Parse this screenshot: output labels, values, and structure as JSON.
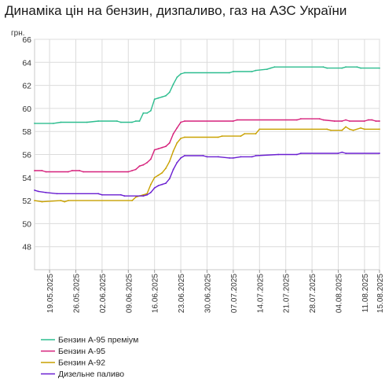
{
  "chart_data": {
    "type": "line",
    "title": "Динаміка цін на бензин, дизпаливо, газ на АЗС України",
    "ylabel": "грн.",
    "ylim": [
      46,
      66
    ],
    "yticks": [
      48,
      50,
      52,
      54,
      56,
      58,
      60,
      62,
      64,
      66
    ],
    "xlim": [
      "2025-05-15",
      "2025-08-15"
    ],
    "xticks": [
      "19.05.2025",
      "26.05.2025",
      "02.06.2025",
      "09.06.2025",
      "16.06.2025",
      "23.06.2025",
      "30.06.2025",
      "07.07.2025",
      "14.07.2025",
      "21.07.2025",
      "28.07.2025",
      "04.08.2025",
      "11.08.2025",
      "15.08.2025"
    ],
    "grid": true,
    "legend_position": "bottom-left",
    "series": [
      {
        "name": "Бензин А-95 преміум",
        "color": "#2dbd8f",
        "points": [
          [
            "2025-05-15",
            58.7
          ],
          [
            "2025-05-20",
            58.7
          ],
          [
            "2025-05-22",
            58.8
          ],
          [
            "2025-05-29",
            58.8
          ],
          [
            "2025-06-01",
            58.9
          ],
          [
            "2025-06-06",
            58.9
          ],
          [
            "2025-06-07",
            58.8
          ],
          [
            "2025-06-10",
            58.8
          ],
          [
            "2025-06-11",
            58.9
          ],
          [
            "2025-06-12",
            58.9
          ],
          [
            "2025-06-13",
            59.6
          ],
          [
            "2025-06-14",
            59.6
          ],
          [
            "2025-06-15",
            59.8
          ],
          [
            "2025-06-16",
            60.8
          ],
          [
            "2025-06-17",
            60.9
          ],
          [
            "2025-06-18",
            61.0
          ],
          [
            "2025-06-19",
            61.1
          ],
          [
            "2025-06-20",
            61.4
          ],
          [
            "2025-06-21",
            62.1
          ],
          [
            "2025-06-22",
            62.7
          ],
          [
            "2025-06-23",
            63.0
          ],
          [
            "2025-06-24",
            63.1
          ],
          [
            "2025-07-06",
            63.1
          ],
          [
            "2025-07-07",
            63.2
          ],
          [
            "2025-07-12",
            63.2
          ],
          [
            "2025-07-13",
            63.3
          ],
          [
            "2025-07-16",
            63.4
          ],
          [
            "2025-07-17",
            63.5
          ],
          [
            "2025-07-18",
            63.6
          ],
          [
            "2025-07-31",
            63.6
          ],
          [
            "2025-08-01",
            63.5
          ],
          [
            "2025-08-05",
            63.5
          ],
          [
            "2025-08-06",
            63.6
          ],
          [
            "2025-08-09",
            63.6
          ],
          [
            "2025-08-10",
            63.5
          ],
          [
            "2025-08-15",
            63.5
          ]
        ]
      },
      {
        "name": "Бензин А-95",
        "color": "#d6217b",
        "points": [
          [
            "2025-05-15",
            54.6
          ],
          [
            "2025-05-17",
            54.6
          ],
          [
            "2025-05-18",
            54.5
          ],
          [
            "2025-05-24",
            54.5
          ],
          [
            "2025-05-25",
            54.6
          ],
          [
            "2025-05-27",
            54.6
          ],
          [
            "2025-05-28",
            54.5
          ],
          [
            "2025-06-09",
            54.5
          ],
          [
            "2025-06-10",
            54.6
          ],
          [
            "2025-06-11",
            54.7
          ],
          [
            "2025-06-12",
            55.0
          ],
          [
            "2025-06-13",
            55.1
          ],
          [
            "2025-06-14",
            55.3
          ],
          [
            "2025-06-15",
            55.6
          ],
          [
            "2025-06-16",
            56.4
          ],
          [
            "2025-06-17",
            56.5
          ],
          [
            "2025-06-18",
            56.6
          ],
          [
            "2025-06-19",
            56.7
          ],
          [
            "2025-06-20",
            57.0
          ],
          [
            "2025-06-21",
            57.8
          ],
          [
            "2025-06-22",
            58.3
          ],
          [
            "2025-06-23",
            58.8
          ],
          [
            "2025-06-24",
            58.9
          ],
          [
            "2025-07-07",
            58.9
          ],
          [
            "2025-07-08",
            59.0
          ],
          [
            "2025-07-24",
            59.0
          ],
          [
            "2025-07-25",
            59.1
          ],
          [
            "2025-07-30",
            59.1
          ],
          [
            "2025-07-31",
            59.0
          ],
          [
            "2025-08-03",
            58.9
          ],
          [
            "2025-08-05",
            58.9
          ],
          [
            "2025-08-06",
            59.0
          ],
          [
            "2025-08-07",
            58.9
          ],
          [
            "2025-08-11",
            58.9
          ],
          [
            "2025-08-12",
            59.0
          ],
          [
            "2025-08-13",
            59.0
          ],
          [
            "2025-08-14",
            58.9
          ],
          [
            "2025-08-15",
            58.9
          ]
        ]
      },
      {
        "name": "Бензин А-92",
        "color": "#c9a100",
        "points": [
          [
            "2025-05-15",
            52.0
          ],
          [
            "2025-05-17",
            51.9
          ],
          [
            "2025-05-22",
            52.0
          ],
          [
            "2025-05-23",
            51.9
          ],
          [
            "2025-05-24",
            52.0
          ],
          [
            "2025-06-10",
            52.0
          ],
          [
            "2025-06-11",
            52.3
          ],
          [
            "2025-06-12",
            52.4
          ],
          [
            "2025-06-13",
            52.5
          ],
          [
            "2025-06-14",
            52.6
          ],
          [
            "2025-06-15",
            53.4
          ],
          [
            "2025-06-16",
            54.0
          ],
          [
            "2025-06-17",
            54.2
          ],
          [
            "2025-06-18",
            54.4
          ],
          [
            "2025-06-19",
            54.8
          ],
          [
            "2025-06-20",
            55.4
          ],
          [
            "2025-06-21",
            56.3
          ],
          [
            "2025-06-22",
            57.0
          ],
          [
            "2025-06-23",
            57.4
          ],
          [
            "2025-06-24",
            57.5
          ],
          [
            "2025-07-03",
            57.5
          ],
          [
            "2025-07-04",
            57.6
          ],
          [
            "2025-07-09",
            57.6
          ],
          [
            "2025-07-10",
            57.8
          ],
          [
            "2025-07-13",
            57.8
          ],
          [
            "2025-07-14",
            58.2
          ],
          [
            "2025-08-01",
            58.2
          ],
          [
            "2025-08-02",
            58.1
          ],
          [
            "2025-08-05",
            58.1
          ],
          [
            "2025-08-06",
            58.4
          ],
          [
            "2025-08-07",
            58.2
          ],
          [
            "2025-08-08",
            58.1
          ],
          [
            "2025-08-10",
            58.3
          ],
          [
            "2025-08-11",
            58.2
          ],
          [
            "2025-08-15",
            58.2
          ]
        ]
      },
      {
        "name": "Дизельне паливо",
        "color": "#6a1fd1",
        "points": [
          [
            "2025-05-15",
            52.9
          ],
          [
            "2025-05-16",
            52.8
          ],
          [
            "2025-05-18",
            52.7
          ],
          [
            "2025-05-21",
            52.6
          ],
          [
            "2025-06-01",
            52.6
          ],
          [
            "2025-06-02",
            52.5
          ],
          [
            "2025-06-07",
            52.5
          ],
          [
            "2025-06-08",
            52.4
          ],
          [
            "2025-06-13",
            52.4
          ],
          [
            "2025-06-14",
            52.5
          ],
          [
            "2025-06-15",
            52.7
          ],
          [
            "2025-06-16",
            53.1
          ],
          [
            "2025-06-17",
            53.3
          ],
          [
            "2025-06-18",
            53.4
          ],
          [
            "2025-06-19",
            53.5
          ],
          [
            "2025-06-20",
            53.9
          ],
          [
            "2025-06-21",
            54.7
          ],
          [
            "2025-06-22",
            55.3
          ],
          [
            "2025-06-23",
            55.7
          ],
          [
            "2025-06-24",
            55.9
          ],
          [
            "2025-06-29",
            55.9
          ],
          [
            "2025-06-30",
            55.8
          ],
          [
            "2025-07-03",
            55.8
          ],
          [
            "2025-07-06",
            55.7
          ],
          [
            "2025-07-07",
            55.7
          ],
          [
            "2025-07-09",
            55.8
          ],
          [
            "2025-07-12",
            55.8
          ],
          [
            "2025-07-13",
            55.9
          ],
          [
            "2025-07-19",
            56.0
          ],
          [
            "2025-07-24",
            56.0
          ],
          [
            "2025-07-25",
            56.1
          ],
          [
            "2025-08-04",
            56.1
          ],
          [
            "2025-08-05",
            56.2
          ],
          [
            "2025-08-06",
            56.1
          ],
          [
            "2025-08-15",
            56.1
          ]
        ]
      }
    ]
  }
}
